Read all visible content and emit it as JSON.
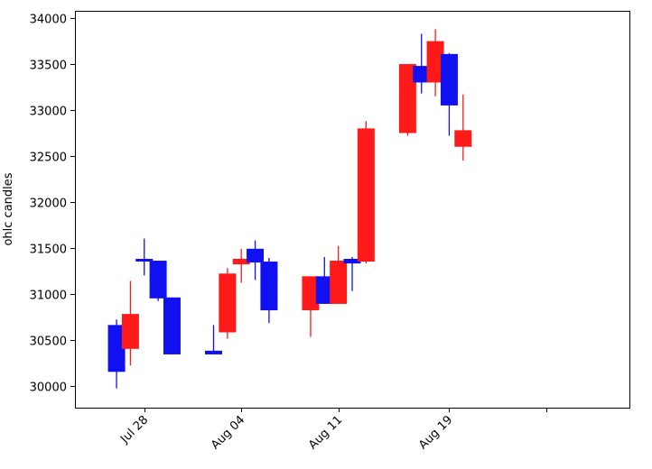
{
  "chart_data": {
    "type": "candlestick",
    "title": "",
    "xlabel": "",
    "ylabel": "ohlc candles",
    "ylim": [
      29760,
      34080
    ],
    "xlim": [
      "2021-07-23",
      "2021-09-01"
    ],
    "yticks": [
      30000,
      30500,
      31000,
      31500,
      32000,
      32500,
      33000,
      33500,
      34000
    ],
    "xticks": [
      {
        "date": "2021-07-28",
        "label": "Jul 28"
      },
      {
        "date": "2021-08-04",
        "label": "Aug 04"
      },
      {
        "date": "2021-08-11",
        "label": "Aug 11"
      },
      {
        "date": "2021-08-19",
        "label": "Aug 19"
      },
      {
        "date": "2021-08-26",
        "label": ""
      }
    ],
    "colors": {
      "up": "#1010f0",
      "down": "#ff1a1a"
    },
    "candles": [
      {
        "date": "2021-07-26",
        "open": 30150,
        "high": 30720,
        "low": 29970,
        "close": 30660,
        "dir": "up"
      },
      {
        "date": "2021-07-27",
        "open": 30780,
        "high": 31140,
        "low": 30220,
        "close": 30400,
        "dir": "down"
      },
      {
        "date": "2021-07-28",
        "open": 31360,
        "high": 31600,
        "low": 31200,
        "close": 31380,
        "dir": "up"
      },
      {
        "date": "2021-07-29",
        "open": 30950,
        "high": 31360,
        "low": 30920,
        "close": 31360,
        "dir": "up"
      },
      {
        "date": "2021-07-30",
        "open": 30340,
        "high": 30960,
        "low": 30340,
        "close": 30960,
        "dir": "up"
      },
      {
        "date": "2021-08-02",
        "open": 30340,
        "high": 30660,
        "low": 30340,
        "close": 30380,
        "dir": "up"
      },
      {
        "date": "2021-08-03",
        "open": 31220,
        "high": 31280,
        "low": 30510,
        "close": 30580,
        "dir": "down"
      },
      {
        "date": "2021-08-04",
        "open": 31380,
        "high": 31490,
        "low": 31120,
        "close": 31320,
        "dir": "down"
      },
      {
        "date": "2021-08-05",
        "open": 31340,
        "high": 31580,
        "low": 31150,
        "close": 31490,
        "dir": "up"
      },
      {
        "date": "2021-08-06",
        "open": 30820,
        "high": 31390,
        "low": 30680,
        "close": 31350,
        "dir": "up"
      },
      {
        "date": "2021-08-09",
        "open": 31190,
        "high": 31190,
        "low": 30530,
        "close": 30820,
        "dir": "down"
      },
      {
        "date": "2021-08-10",
        "open": 30890,
        "high": 31400,
        "low": 30890,
        "close": 31190,
        "dir": "up"
      },
      {
        "date": "2021-08-11",
        "open": 31360,
        "high": 31520,
        "low": 30890,
        "close": 30890,
        "dir": "down"
      },
      {
        "date": "2021-08-12",
        "open": 31330,
        "high": 31400,
        "low": 31030,
        "close": 31380,
        "dir": "up"
      },
      {
        "date": "2021-08-13",
        "open": 32800,
        "high": 32880,
        "low": 31330,
        "close": 31350,
        "dir": "down"
      },
      {
        "date": "2021-08-16",
        "open": 33500,
        "high": 33500,
        "low": 32720,
        "close": 32750,
        "dir": "down"
      },
      {
        "date": "2021-08-17",
        "open": 33300,
        "high": 33830,
        "low": 33180,
        "close": 33480,
        "dir": "up"
      },
      {
        "date": "2021-08-18",
        "open": 33750,
        "high": 33880,
        "low": 33150,
        "close": 33300,
        "dir": "down"
      },
      {
        "date": "2021-08-19",
        "open": 33050,
        "high": 33620,
        "low": 32720,
        "close": 33610,
        "dir": "up"
      },
      {
        "date": "2021-08-20",
        "open": 32780,
        "high": 33170,
        "low": 32450,
        "close": 32600,
        "dir": "down"
      }
    ]
  }
}
